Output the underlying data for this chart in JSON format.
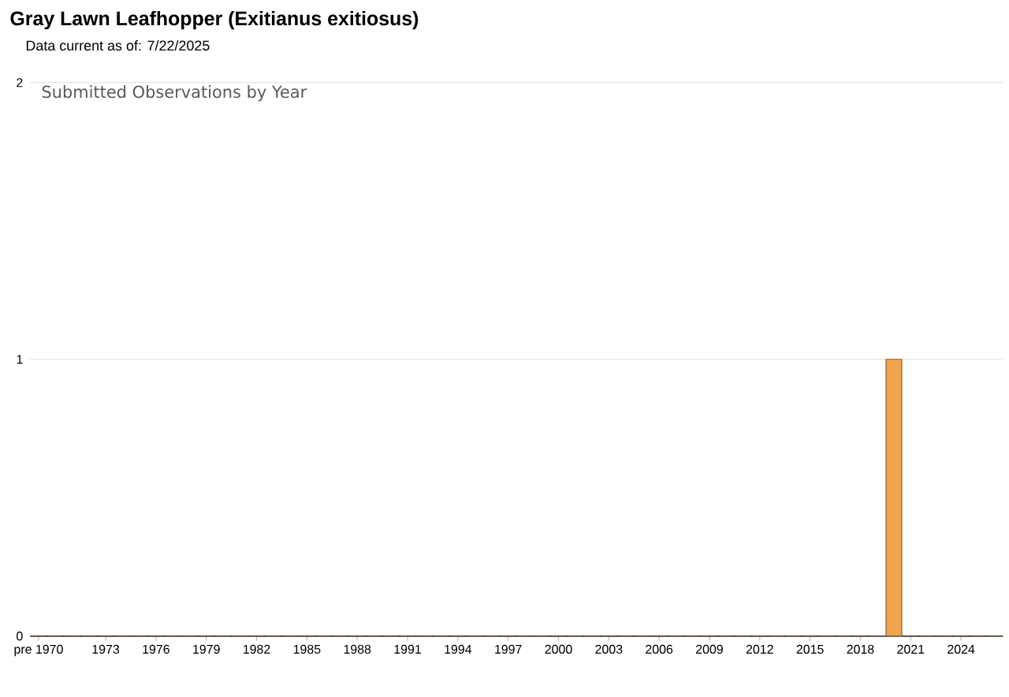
{
  "chart_data": {
    "type": "bar",
    "title": "Gray Lawn Leafhopper   (Exitianus exitiosus)",
    "subtitle": "Data current as of: 7/22/2025",
    "annotations": [
      "Submitted Observations by Year"
    ],
    "categories": [
      "pre 1970",
      null,
      null,
      null,
      "1973",
      null,
      null,
      "1976",
      null,
      null,
      "1979",
      null,
      null,
      "1982",
      null,
      null,
      "1985",
      null,
      null,
      "1988",
      null,
      null,
      "1991",
      null,
      null,
      "1994",
      null,
      null,
      "1997",
      null,
      null,
      "2000",
      null,
      null,
      "2003",
      null,
      null,
      "2006",
      null,
      null,
      "2009",
      null,
      null,
      "2012",
      null,
      null,
      "2015",
      null,
      null,
      "2018",
      null,
      null,
      "2021",
      null,
      null,
      "2024",
      null,
      null
    ],
    "values": [
      0,
      0,
      0,
      0,
      0,
      0,
      0,
      0,
      0,
      0,
      0,
      0,
      0,
      0,
      0,
      0,
      0,
      0,
      0,
      0,
      0,
      0,
      0,
      0,
      0,
      0,
      0,
      0,
      0,
      0,
      0,
      0,
      0,
      0,
      0,
      0,
      0,
      0,
      0,
      0,
      0,
      0,
      0,
      0,
      0,
      0,
      0,
      0,
      0,
      0,
      0,
      1,
      0,
      0,
      0,
      0,
      0,
      0
    ],
    "color": "#f0a44e",
    "ylim": [
      0,
      2
    ],
    "yticks": [
      0,
      1,
      2
    ],
    "grid": "y"
  }
}
